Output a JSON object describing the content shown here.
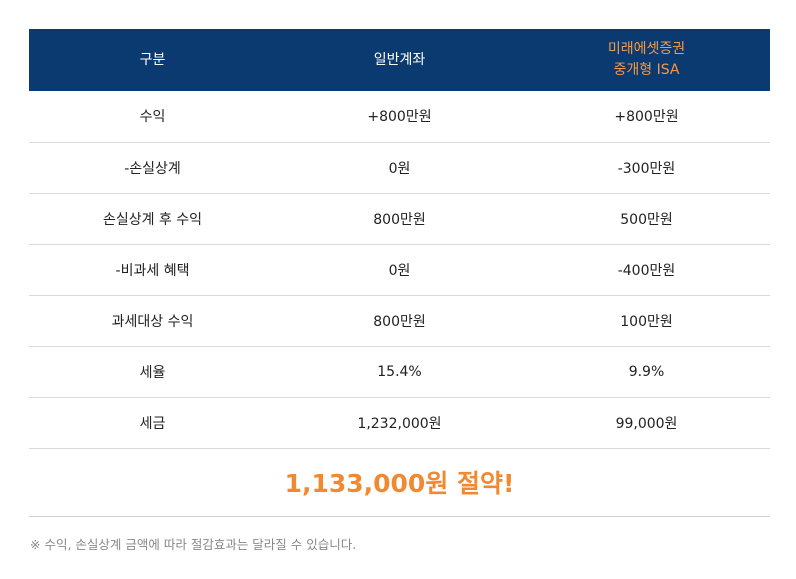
{
  "table": {
    "headers": {
      "col1": "구분",
      "col2": "일반계좌",
      "col3_line1": "미래에셋증권",
      "col3_line2": "중개형 ISA"
    },
    "rows": [
      {
        "label": "수익",
        "general": "+800만원",
        "isa": "+800만원"
      },
      {
        "label": "-손실상계",
        "general": "0원",
        "isa": "-300만원"
      },
      {
        "label": "손실상계 후 수익",
        "general": "800만원",
        "isa": "500만원"
      },
      {
        "label": "-비과세 혜택",
        "general": "0원",
        "isa": "-400만원"
      },
      {
        "label": "과세대상 수익",
        "general": "800만원",
        "isa": "100만원"
      },
      {
        "label": "세율",
        "general": "15.4%",
        "isa": "9.9%"
      },
      {
        "label": "세금",
        "general": "1,232,000원",
        "isa": "99,000원"
      }
    ]
  },
  "savings": "1,133,000원 절약!",
  "footnote": "※ 수익, 손실상계 금액에 따라 절감효과는 달라질 수 있습니다.",
  "colors": {
    "header_bg": "#0b3a71",
    "header_text": "#ffffff",
    "accent": "#f08a32",
    "divider": "#d9d9d9"
  }
}
